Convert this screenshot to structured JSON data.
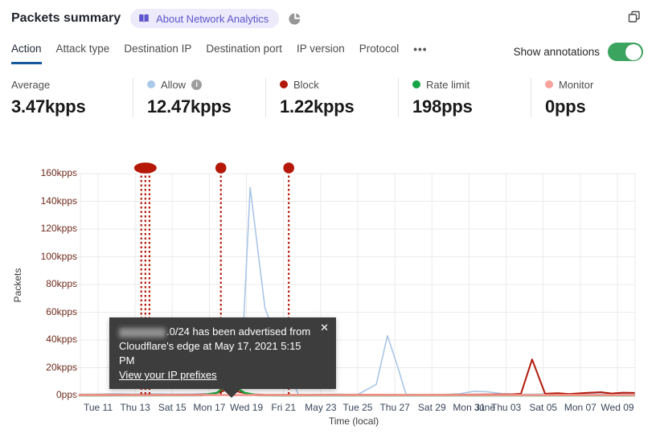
{
  "header": {
    "title": "Packets summary",
    "badge_label": "About Network Analytics"
  },
  "tabs": {
    "items": [
      {
        "label": "Action",
        "active": true
      },
      {
        "label": "Attack type",
        "active": false
      },
      {
        "label": "Destination IP",
        "active": false
      },
      {
        "label": "Destination port",
        "active": false
      },
      {
        "label": "IP version",
        "active": false
      },
      {
        "label": "Protocol",
        "active": false
      }
    ],
    "more_label": "•••",
    "show_annotations_label": "Show annotations",
    "annotations_on": true,
    "toggle_color": "#3ba45e"
  },
  "stats": [
    {
      "label": "Average",
      "value": "3.47kpps",
      "dot_color": null,
      "has_info": false
    },
    {
      "label": "Allow",
      "value": "12.47kpps",
      "dot_color": "#abc9e9",
      "has_info": true
    },
    {
      "label": "Block",
      "value": "1.22kpps",
      "dot_color": "#b2190b",
      "has_info": false
    },
    {
      "label": "Rate limit",
      "value": "198pps",
      "dot_color": "#15a346",
      "has_info": false
    },
    {
      "label": "Monitor",
      "value": "0pps",
      "dot_color": "#f8a29b",
      "has_info": false
    }
  ],
  "tooltip": {
    "line1_redacted": true,
    "line1": ".0/24 has been advertised from",
    "line2": "Cloudflare's edge at May 17, 2021 5:15 PM",
    "link": "View your IP prefixes",
    "close": "✕"
  },
  "chart_data": {
    "type": "line",
    "xlabel": "Time (local)",
    "ylabel": "Packets",
    "x_unit": "days since Tue May 11 2021 (2-day tick spacing)",
    "y_unit": "kpps",
    "ylim": [
      0,
      160
    ],
    "grid": true,
    "legend_position": "top-stats-row",
    "x_tick_labels": [
      "Tue 11",
      "Thu 13",
      "Sat 15",
      "Mon 17",
      "Wed 19",
      "Fri 21",
      "May 23",
      "Tue 25",
      "Thu 27",
      "Sat 29",
      "Mon 31",
      "Thu 03",
      "Sat 05",
      "Mon 07",
      "Wed 09"
    ],
    "extra_x_label": "June",
    "y_tick_labels": [
      "0pps",
      "20kpps",
      "40kpps",
      "60kpps",
      "80kpps",
      "100kpps",
      "120kpps",
      "140kpps",
      "160kpps"
    ],
    "annotation_color": "#b51807",
    "annotations": [
      {
        "label": "IP prefix advertised (cluster)",
        "x_days": [
          2.33,
          2.55,
          2.77
        ]
      },
      {
        "label": "IP prefix advertised May 17, 2021 5:15 PM",
        "x_days": [
          6.62
        ]
      },
      {
        "label": "IP prefix advertised",
        "x_days": [
          10.28
        ]
      }
    ],
    "series": [
      {
        "name": "Allow",
        "color": "#a9c6e6",
        "width": 1.6,
        "points": [
          [
            -1,
            0.8
          ],
          [
            0,
            0.9
          ],
          [
            1,
            1.1
          ],
          [
            2,
            0.9
          ],
          [
            3,
            1.1
          ],
          [
            4,
            0.9
          ],
          [
            5,
            1
          ],
          [
            6,
            1.3
          ],
          [
            6.6,
            2.5
          ],
          [
            7.2,
            5
          ],
          [
            7.7,
            12
          ],
          [
            8.2,
            150
          ],
          [
            9,
            63
          ],
          [
            10.3,
            17
          ],
          [
            10.8,
            0.6
          ],
          [
            12,
            0.5
          ],
          [
            13,
            0.8
          ],
          [
            14,
            0.6
          ],
          [
            15,
            8
          ],
          [
            15.6,
            43
          ],
          [
            16.1,
            23
          ],
          [
            16.6,
            0.8
          ],
          [
            17.5,
            0.5
          ],
          [
            18.5,
            0.6
          ],
          [
            19.5,
            1.2
          ],
          [
            20.3,
            3
          ],
          [
            21,
            2.6
          ],
          [
            21.8,
            1.2
          ],
          [
            23,
            0.8
          ],
          [
            24,
            1
          ],
          [
            25,
            1.1
          ],
          [
            26,
            1
          ],
          [
            27,
            1
          ],
          [
            28,
            1
          ],
          [
            28.9,
            1
          ]
        ]
      },
      {
        "name": "Block",
        "color": "#b2190b",
        "width": 2,
        "points": [
          [
            -1,
            0.4
          ],
          [
            1,
            0.5
          ],
          [
            3,
            0.4
          ],
          [
            5,
            0.5
          ],
          [
            6.2,
            0.8
          ],
          [
            6.8,
            3.5
          ],
          [
            7.1,
            6
          ],
          [
            7.6,
            2.5
          ],
          [
            8.2,
            0.8
          ],
          [
            9,
            0.5
          ],
          [
            11,
            0.4
          ],
          [
            13,
            0.5
          ],
          [
            15,
            0.5
          ],
          [
            17,
            0.4
          ],
          [
            19,
            0.5
          ],
          [
            21,
            0.7
          ],
          [
            22.3,
            0.8
          ],
          [
            22.8,
            1.2
          ],
          [
            23.4,
            26
          ],
          [
            24.1,
            1.2
          ],
          [
            24.8,
            1.6
          ],
          [
            25.4,
            1
          ],
          [
            26.3,
            1.8
          ],
          [
            27.1,
            2.3
          ],
          [
            27.7,
            1.4
          ],
          [
            28.3,
            2
          ],
          [
            28.9,
            1.8
          ]
        ]
      },
      {
        "name": "Rate limit",
        "color": "#1ea53c",
        "width": 2.6,
        "points": [
          [
            -1,
            0
          ],
          [
            5.6,
            0.1
          ],
          [
            6.4,
            1.8
          ],
          [
            7.1,
            8.5
          ],
          [
            7.9,
            1.8
          ],
          [
            8.6,
            0.1
          ],
          [
            10,
            0
          ],
          [
            28.9,
            0
          ]
        ]
      },
      {
        "name": "Monitor",
        "color": "#f59790",
        "width": 2.6,
        "points": [
          [
            -1,
            0.25
          ],
          [
            28.9,
            0.25
          ]
        ]
      }
    ]
  }
}
